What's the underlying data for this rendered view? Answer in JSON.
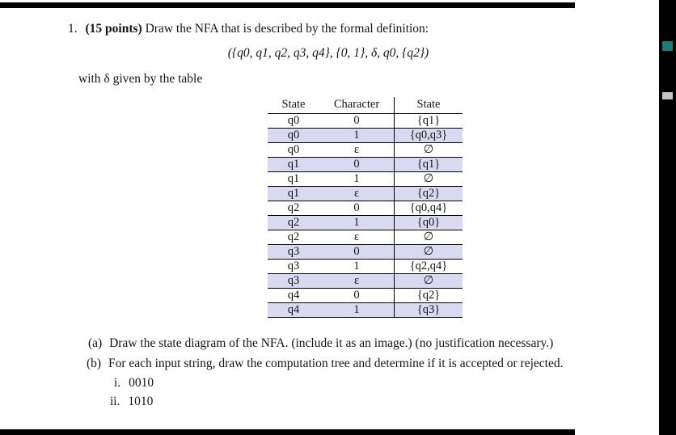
{
  "document": {
    "problem": {
      "number": "1.",
      "points_label": "(15 points)",
      "intro": "Draw the NFA that is described by the formal definition:",
      "formal_definition": "({q0, q1, q2, q3, q4}, {0, 1}, δ, q0, {q2})",
      "table_caption": "with δ given by the table"
    },
    "table": {
      "headers": [
        "State",
        "Character",
        "State"
      ],
      "rows": [
        [
          "q0",
          "0",
          "{q1}"
        ],
        [
          "q0",
          "1",
          "{q0,q3}"
        ],
        [
          "q0",
          "ε",
          "∅"
        ],
        [
          "q1",
          "0",
          "{q1}"
        ],
        [
          "q1",
          "1",
          "∅"
        ],
        [
          "q1",
          "ε",
          "{q2}"
        ],
        [
          "q2",
          "0",
          "{q0,q4}"
        ],
        [
          "q2",
          "1",
          "{q0}"
        ],
        [
          "q2",
          "ε",
          "∅"
        ],
        [
          "q3",
          "0",
          "∅"
        ],
        [
          "q3",
          "1",
          "{q2,q4}"
        ],
        [
          "q3",
          "ε",
          "∅"
        ],
        [
          "q4",
          "0",
          "{q2}"
        ],
        [
          "q4",
          "1",
          "{q3}"
        ]
      ]
    },
    "parts": [
      {
        "label": "(a)",
        "text": "Draw the state diagram of the NFA. (include it as an image.) (no justification necessary.)"
      },
      {
        "label": "(b)",
        "text": "For each input string, draw the computation tree and determine if it is accepted or rejected."
      }
    ],
    "subitems": [
      {
        "label": "i.",
        "text": "0010"
      },
      {
        "label": "ii.",
        "text": "1010"
      }
    ]
  },
  "colors": {
    "rule_color": "#000000",
    "scrollbar_bg": "#000000",
    "scroll_thumb": "#1e7a74",
    "scroll_marker": "#c2c6c9",
    "row_shade": "#d9daf1"
  }
}
